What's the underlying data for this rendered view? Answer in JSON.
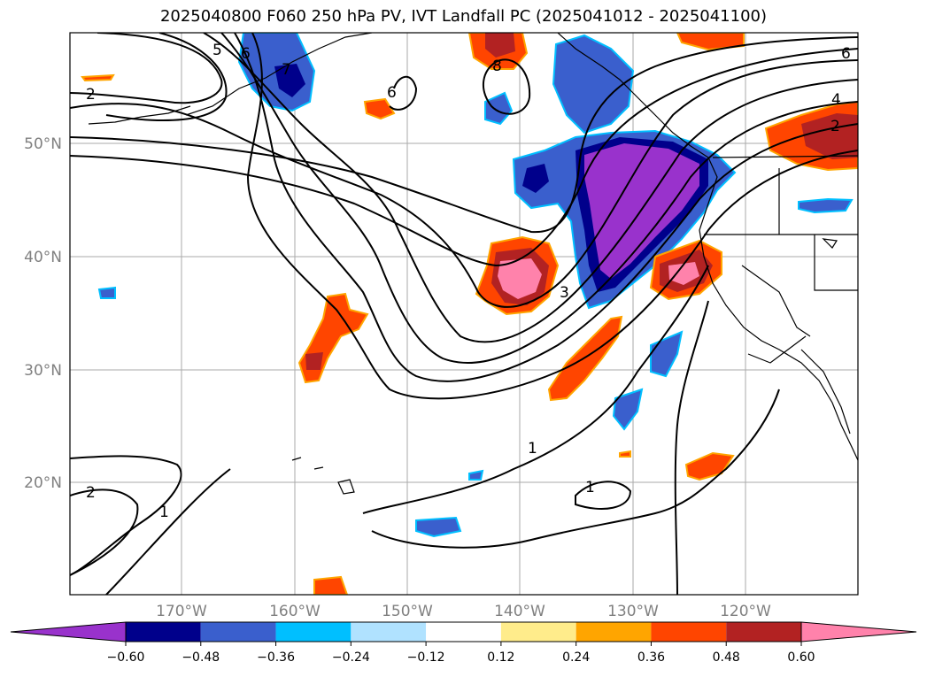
{
  "title": "2025040800 F060 250 hPa PV, IVT Landfall PC (2025041012 - 2025041100)",
  "lat_labels": [
    "50°N",
    "40°N",
    "30°N",
    "20°N"
  ],
  "lon_labels": [
    "170°W",
    "160°W",
    "150°W",
    "140°W",
    "130°W",
    "120°W"
  ],
  "contour_labels": [
    "5",
    "6",
    "7",
    "8",
    "6",
    "2",
    "4",
    "2",
    "3",
    "1",
    "1",
    "1",
    "2",
    "6"
  ],
  "colorbar": {
    "tick_labels": [
      "−0.60",
      "−0.48",
      "−0.36",
      "−0.24",
      "−0.12",
      "0.12",
      "0.24",
      "0.36",
      "0.48",
      "0.60"
    ],
    "colors": [
      "#9932cc",
      "#00008b",
      "#3a5fcd",
      "#00bfff",
      "#b0e2ff",
      "#ffffff",
      "#ffec8b",
      "#ffa500",
      "#ff4500",
      "#b22222",
      "#ff82ab"
    ]
  }
}
